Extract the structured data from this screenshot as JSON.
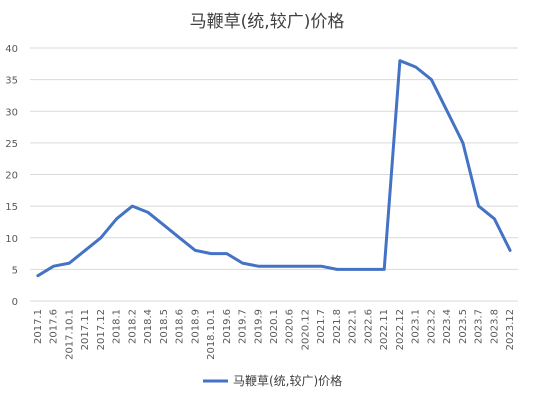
{
  "chart_data": {
    "type": "line",
    "title": "马鞭草(统,较广)价格",
    "xlabel": "",
    "ylabel": "",
    "ylim": [
      0,
      40
    ],
    "yticks": [
      0,
      5,
      10,
      15,
      20,
      25,
      30,
      35,
      40
    ],
    "grid": true,
    "legend_position": "bottom",
    "categories": [
      "2017.1",
      "2017.6",
      "2017.10.1",
      "2017.11",
      "2017.12",
      "2018.1",
      "2018.2",
      "2018.4",
      "2018.5",
      "2018.6",
      "2018.9",
      "2018.10.1",
      "2019.6",
      "2019.7",
      "2019.9",
      "2020.1",
      "2020.6",
      "2020.12",
      "2021.7",
      "2021.8",
      "2022.1",
      "2022.6",
      "2022.11",
      "2022.12",
      "2023.1",
      "2023.2",
      "2023.4",
      "2023.5",
      "2023.7",
      "2023.8",
      "2023.12"
    ],
    "series": [
      {
        "name": "马鞭草(统,较广)价格",
        "color": "#4472c4",
        "values": [
          4,
          5.5,
          6,
          8,
          10,
          13,
          15,
          14,
          12,
          10,
          8,
          7.5,
          7.5,
          6,
          5.5,
          5.5,
          5.5,
          5.5,
          5.5,
          5,
          5,
          5,
          5,
          38,
          37,
          35,
          30,
          25,
          15,
          13,
          8
        ]
      }
    ]
  }
}
